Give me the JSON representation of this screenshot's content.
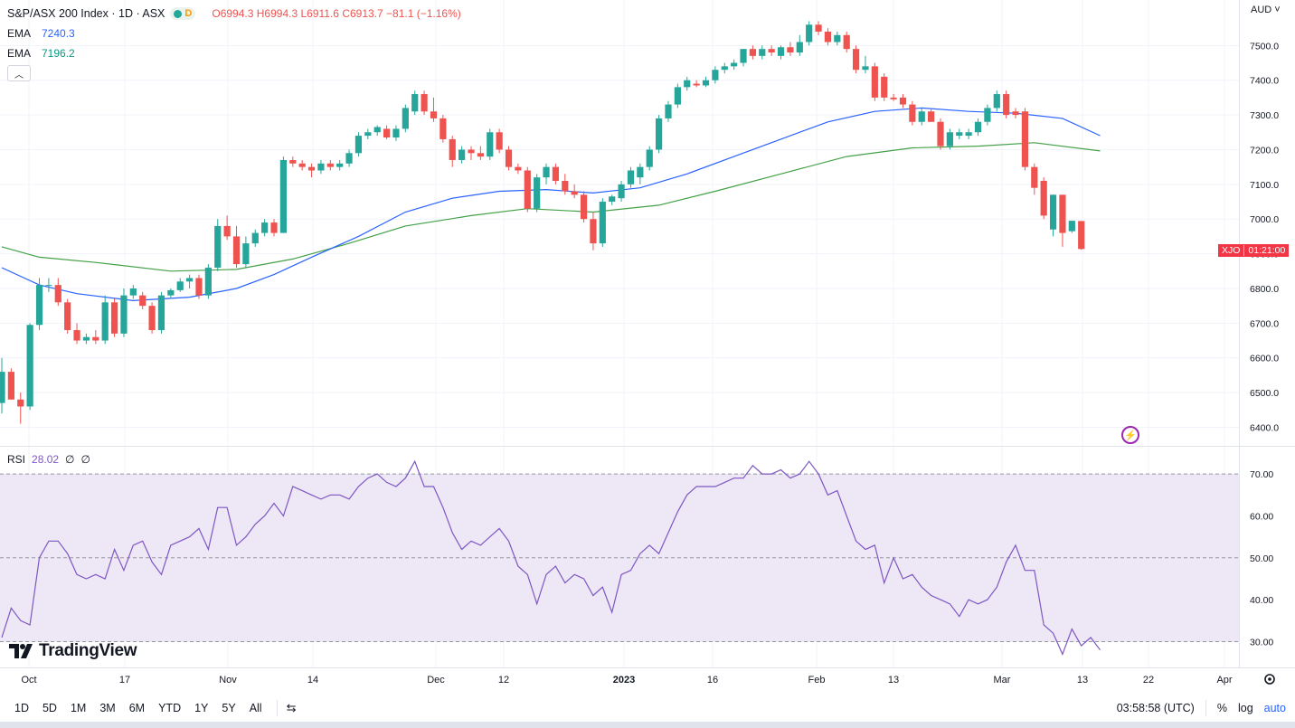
{
  "header": {
    "title": "S&P/ASX 200 Index · 1D · ASX",
    "interval_badge": "D",
    "open": "O6994.3",
    "high": "H6994.3",
    "low": "L6911.6",
    "close": "C6913.7",
    "change": "−81.1 (−1.16%)"
  },
  "indicators": [
    {
      "label": "EMA",
      "value": "7240.3",
      "color": "#2962ff"
    },
    {
      "label": "EMA",
      "value": "7196.2",
      "color": "#089981"
    }
  ],
  "currency": "AUD",
  "price_tag": {
    "symbol": "XJO",
    "countdown": "01:21:00"
  },
  "rsi_legend": {
    "label": "RSI",
    "value": "28.02",
    "extra1": "∅",
    "extra2": "∅"
  },
  "branding": {
    "logo_text": "TradingView"
  },
  "toolbar": {
    "timeframes": [
      "1D",
      "5D",
      "1M",
      "3M",
      "6M",
      "YTD",
      "1Y",
      "5Y",
      "All"
    ],
    "clock": "03:58:58 (UTC)",
    "percent": "%",
    "log": "log",
    "auto": "auto"
  },
  "colors": {
    "up": "#26a69a",
    "down": "#ef5350",
    "ema_fast": "#2962ff",
    "ema_slow": "#089981",
    "rsi": "#7e57c2",
    "rsi_band": "#ede7f6"
  },
  "chart_data": {
    "type": "candlestick",
    "price_axis": {
      "ticks": [
        6400,
        6500,
        6600,
        6700,
        6800,
        6900,
        7000,
        7100,
        7200,
        7300,
        7400,
        7500
      ],
      "tick_labels": [
        "6400.0",
        "6500.0",
        "6600.0",
        "6700.0",
        "6800.0",
        "6900.0",
        "7000.0",
        "7100.0",
        "7200.0",
        "7300.0",
        "7400.0",
        "7500.0"
      ]
    },
    "time_axis": {
      "labels": [
        "Oct",
        "17",
        "Nov",
        "14",
        "Dec",
        "12",
        "2023",
        "16",
        "Feb",
        "13",
        "Mar",
        "13",
        "22",
        "Apr"
      ]
    },
    "candles": [
      {
        "o": 6470,
        "h": 6600,
        "l": 6440,
        "c": 6560
      },
      {
        "o": 6560,
        "h": 6570,
        "l": 6480,
        "c": 6480
      },
      {
        "o": 6480,
        "h": 6500,
        "l": 6410,
        "c": 6460
      },
      {
        "o": 6460,
        "h": 6700,
        "l": 6450,
        "c": 6695
      },
      {
        "o": 6695,
        "h": 6830,
        "l": 6680,
        "c": 6810
      },
      {
        "o": 6810,
        "h": 6830,
        "l": 6790,
        "c": 6810
      },
      {
        "o": 6810,
        "h": 6830,
        "l": 6750,
        "c": 6760
      },
      {
        "o": 6760,
        "h": 6770,
        "l": 6670,
        "c": 6680
      },
      {
        "o": 6680,
        "h": 6700,
        "l": 6640,
        "c": 6650
      },
      {
        "o": 6650,
        "h": 6670,
        "l": 6640,
        "c": 6660
      },
      {
        "o": 6660,
        "h": 6680,
        "l": 6640,
        "c": 6650
      },
      {
        "o": 6650,
        "h": 6780,
        "l": 6640,
        "c": 6760
      },
      {
        "o": 6760,
        "h": 6770,
        "l": 6660,
        "c": 6670
      },
      {
        "o": 6670,
        "h": 6800,
        "l": 6660,
        "c": 6780
      },
      {
        "o": 6780,
        "h": 6810,
        "l": 6770,
        "c": 6800
      },
      {
        "o": 6780,
        "h": 6790,
        "l": 6740,
        "c": 6750
      },
      {
        "o": 6750,
        "h": 6760,
        "l": 6670,
        "c": 6680
      },
      {
        "o": 6680,
        "h": 6790,
        "l": 6670,
        "c": 6780
      },
      {
        "o": 6780,
        "h": 6800,
        "l": 6770,
        "c": 6795
      },
      {
        "o": 6795,
        "h": 6830,
        "l": 6790,
        "c": 6820
      },
      {
        "o": 6820,
        "h": 6840,
        "l": 6800,
        "c": 6830
      },
      {
        "o": 6830,
        "h": 6840,
        "l": 6770,
        "c": 6780
      },
      {
        "o": 6780,
        "h": 6870,
        "l": 6770,
        "c": 6860
      },
      {
        "o": 6860,
        "h": 7000,
        "l": 6850,
        "c": 6980
      },
      {
        "o": 6980,
        "h": 7010,
        "l": 6940,
        "c": 6950
      },
      {
        "o": 6950,
        "h": 6980,
        "l": 6860,
        "c": 6870
      },
      {
        "o": 6870,
        "h": 6950,
        "l": 6860,
        "c": 6930
      },
      {
        "o": 6930,
        "h": 6970,
        "l": 6920,
        "c": 6960
      },
      {
        "o": 6960,
        "h": 7000,
        "l": 6950,
        "c": 6990
      },
      {
        "o": 6990,
        "h": 7000,
        "l": 6950,
        "c": 6960
      },
      {
        "o": 6960,
        "h": 7180,
        "l": 6960,
        "c": 7170
      },
      {
        "o": 7170,
        "h": 7180,
        "l": 7150,
        "c": 7160
      },
      {
        "o": 7160,
        "h": 7170,
        "l": 7140,
        "c": 7150
      },
      {
        "o": 7150,
        "h": 7160,
        "l": 7120,
        "c": 7140
      },
      {
        "o": 7140,
        "h": 7170,
        "l": 7130,
        "c": 7160
      },
      {
        "o": 7160,
        "h": 7170,
        "l": 7140,
        "c": 7150
      },
      {
        "o": 7150,
        "h": 7170,
        "l": 7140,
        "c": 7160
      },
      {
        "o": 7160,
        "h": 7200,
        "l": 7150,
        "c": 7190
      },
      {
        "o": 7190,
        "h": 7250,
        "l": 7180,
        "c": 7240
      },
      {
        "o": 7240,
        "h": 7260,
        "l": 7230,
        "c": 7250
      },
      {
        "o": 7250,
        "h": 7270,
        "l": 7240,
        "c": 7265
      },
      {
        "o": 7260,
        "h": 7270,
        "l": 7230,
        "c": 7235
      },
      {
        "o": 7235,
        "h": 7270,
        "l": 7225,
        "c": 7260
      },
      {
        "o": 7260,
        "h": 7330,
        "l": 7250,
        "c": 7320
      },
      {
        "o": 7310,
        "h": 7370,
        "l": 7300,
        "c": 7360
      },
      {
        "o": 7360,
        "h": 7370,
        "l": 7300,
        "c": 7310
      },
      {
        "o": 7310,
        "h": 7350,
        "l": 7280,
        "c": 7290
      },
      {
        "o": 7290,
        "h": 7300,
        "l": 7220,
        "c": 7230
      },
      {
        "o": 7230,
        "h": 7240,
        "l": 7150,
        "c": 7170
      },
      {
        "o": 7170,
        "h": 7210,
        "l": 7160,
        "c": 7200
      },
      {
        "o": 7200,
        "h": 7210,
        "l": 7170,
        "c": 7190
      },
      {
        "o": 7190,
        "h": 7210,
        "l": 7170,
        "c": 7180
      },
      {
        "o": 7180,
        "h": 7260,
        "l": 7170,
        "c": 7250
      },
      {
        "o": 7250,
        "h": 7260,
        "l": 7190,
        "c": 7200
      },
      {
        "o": 7200,
        "h": 7210,
        "l": 7140,
        "c": 7150
      },
      {
        "o": 7150,
        "h": 7160,
        "l": 7130,
        "c": 7140
      },
      {
        "o": 7140,
        "h": 7150,
        "l": 7020,
        "c": 7030
      },
      {
        "o": 7030,
        "h": 7130,
        "l": 7020,
        "c": 7120
      },
      {
        "o": 7120,
        "h": 7160,
        "l": 7100,
        "c": 7150
      },
      {
        "o": 7150,
        "h": 7160,
        "l": 7100,
        "c": 7110
      },
      {
        "o": 7110,
        "h": 7130,
        "l": 7070,
        "c": 7080
      },
      {
        "o": 7080,
        "h": 7100,
        "l": 7060,
        "c": 7070
      },
      {
        "o": 7070,
        "h": 7080,
        "l": 6990,
        "c": 7000
      },
      {
        "o": 7000,
        "h": 7020,
        "l": 6910,
        "c": 6930
      },
      {
        "o": 6930,
        "h": 7060,
        "l": 6920,
        "c": 7050
      },
      {
        "o": 7050,
        "h": 7070,
        "l": 7040,
        "c": 7065
      },
      {
        "o": 7060,
        "h": 7110,
        "l": 7050,
        "c": 7100
      },
      {
        "o": 7100,
        "h": 7150,
        "l": 7090,
        "c": 7140
      },
      {
        "o": 7120,
        "h": 7160,
        "l": 7100,
        "c": 7150
      },
      {
        "o": 7150,
        "h": 7210,
        "l": 7140,
        "c": 7200
      },
      {
        "o": 7200,
        "h": 7300,
        "l": 7190,
        "c": 7290
      },
      {
        "o": 7290,
        "h": 7340,
        "l": 7280,
        "c": 7330
      },
      {
        "o": 7330,
        "h": 7390,
        "l": 7320,
        "c": 7380
      },
      {
        "o": 7380,
        "h": 7410,
        "l": 7370,
        "c": 7400
      },
      {
        "o": 7390,
        "h": 7400,
        "l": 7380,
        "c": 7385
      },
      {
        "o": 7385,
        "h": 7410,
        "l": 7380,
        "c": 7400
      },
      {
        "o": 7400,
        "h": 7440,
        "l": 7390,
        "c": 7430
      },
      {
        "o": 7430,
        "h": 7450,
        "l": 7420,
        "c": 7440
      },
      {
        "o": 7440,
        "h": 7460,
        "l": 7430,
        "c": 7450
      },
      {
        "o": 7450,
        "h": 7490,
        "l": 7440,
        "c": 7490
      },
      {
        "o": 7490,
        "h": 7500,
        "l": 7460,
        "c": 7470
      },
      {
        "o": 7470,
        "h": 7500,
        "l": 7460,
        "c": 7490
      },
      {
        "o": 7490,
        "h": 7500,
        "l": 7470,
        "c": 7480
      },
      {
        "o": 7470,
        "h": 7500,
        "l": 7460,
        "c": 7495
      },
      {
        "o": 7495,
        "h": 7510,
        "l": 7470,
        "c": 7480
      },
      {
        "o": 7480,
        "h": 7530,
        "l": 7470,
        "c": 7510
      },
      {
        "o": 7510,
        "h": 7570,
        "l": 7500,
        "c": 7560
      },
      {
        "o": 7560,
        "h": 7570,
        "l": 7530,
        "c": 7540
      },
      {
        "o": 7540,
        "h": 7550,
        "l": 7500,
        "c": 7510
      },
      {
        "o": 7510,
        "h": 7540,
        "l": 7500,
        "c": 7530
      },
      {
        "o": 7530,
        "h": 7540,
        "l": 7480,
        "c": 7490
      },
      {
        "o": 7490,
        "h": 7500,
        "l": 7420,
        "c": 7430
      },
      {
        "o": 7430,
        "h": 7470,
        "l": 7420,
        "c": 7440
      },
      {
        "o": 7440,
        "h": 7450,
        "l": 7340,
        "c": 7350
      },
      {
        "o": 7410,
        "h": 7420,
        "l": 7340,
        "c": 7350
      },
      {
        "o": 7350,
        "h": 7360,
        "l": 7340,
        "c": 7345
      },
      {
        "o": 7350,
        "h": 7360,
        "l": 7320,
        "c": 7330
      },
      {
        "o": 7330,
        "h": 7340,
        "l": 7270,
        "c": 7280
      },
      {
        "o": 7280,
        "h": 7320,
        "l": 7270,
        "c": 7310
      },
      {
        "o": 7310,
        "h": 7320,
        "l": 7280,
        "c": 7280
      },
      {
        "o": 7280,
        "h": 7290,
        "l": 7200,
        "c": 7210
      },
      {
        "o": 7210,
        "h": 7260,
        "l": 7200,
        "c": 7250
      },
      {
        "o": 7240,
        "h": 7260,
        "l": 7230,
        "c": 7250
      },
      {
        "o": 7240,
        "h": 7260,
        "l": 7230,
        "c": 7250
      },
      {
        "o": 7250,
        "h": 7290,
        "l": 7240,
        "c": 7280
      },
      {
        "o": 7280,
        "h": 7330,
        "l": 7270,
        "c": 7320
      },
      {
        "o": 7320,
        "h": 7370,
        "l": 7310,
        "c": 7360
      },
      {
        "o": 7360,
        "h": 7370,
        "l": 7290,
        "c": 7300
      },
      {
        "o": 7310,
        "h": 7320,
        "l": 7290,
        "c": 7300
      },
      {
        "o": 7310,
        "h": 7320,
        "l": 7140,
        "c": 7150
      },
      {
        "o": 7150,
        "h": 7160,
        "l": 7070,
        "c": 7090
      },
      {
        "o": 7110,
        "h": 7120,
        "l": 7000,
        "c": 7010
      },
      {
        "o": 6970,
        "h": 7070,
        "l": 6950,
        "c": 7070
      },
      {
        "o": 7070,
        "h": 7070,
        "l": 6920,
        "c": 6960
      },
      {
        "o": 6965,
        "h": 6995,
        "l": 6960,
        "c": 6995
      },
      {
        "o": 6994.3,
        "h": 6994.3,
        "l": 6911.6,
        "c": 6913.7
      }
    ],
    "ema_fast": [
      {
        "i": 0,
        "v": 6860
      },
      {
        "i": 4,
        "v": 6810
      },
      {
        "i": 8,
        "v": 6785
      },
      {
        "i": 14,
        "v": 6765
      },
      {
        "i": 20,
        "v": 6775
      },
      {
        "i": 25,
        "v": 6800
      },
      {
        "i": 29,
        "v": 6840
      },
      {
        "i": 33,
        "v": 6890
      },
      {
        "i": 38,
        "v": 6950
      },
      {
        "i": 43,
        "v": 7020
      },
      {
        "i": 48,
        "v": 7060
      },
      {
        "i": 53,
        "v": 7080
      },
      {
        "i": 58,
        "v": 7085
      },
      {
        "i": 63,
        "v": 7075
      },
      {
        "i": 68,
        "v": 7090
      },
      {
        "i": 73,
        "v": 7130
      },
      {
        "i": 78,
        "v": 7180
      },
      {
        "i": 83,
        "v": 7230
      },
      {
        "i": 88,
        "v": 7280
      },
      {
        "i": 93,
        "v": 7310
      },
      {
        "i": 98,
        "v": 7320
      },
      {
        "i": 103,
        "v": 7310
      },
      {
        "i": 108,
        "v": 7305
      },
      {
        "i": 113,
        "v": 7290
      },
      {
        "i": 117,
        "v": 7240.3
      }
    ],
    "ema_slow": [
      {
        "i": 0,
        "v": 6920
      },
      {
        "i": 4,
        "v": 6890
      },
      {
        "i": 10,
        "v": 6875
      },
      {
        "i": 18,
        "v": 6850
      },
      {
        "i": 25,
        "v": 6855
      },
      {
        "i": 31,
        "v": 6885
      },
      {
        "i": 37,
        "v": 6930
      },
      {
        "i": 43,
        "v": 6980
      },
      {
        "i": 50,
        "v": 7010
      },
      {
        "i": 56,
        "v": 7030
      },
      {
        "i": 63,
        "v": 7020
      },
      {
        "i": 70,
        "v": 7040
      },
      {
        "i": 76,
        "v": 7080
      },
      {
        "i": 83,
        "v": 7130
      },
      {
        "i": 90,
        "v": 7180
      },
      {
        "i": 97,
        "v": 7205
      },
      {
        "i": 104,
        "v": 7210
      },
      {
        "i": 110,
        "v": 7220
      },
      {
        "i": 117,
        "v": 7196.2
      }
    ],
    "rsi": {
      "ticks": [
        30,
        40,
        50,
        60,
        70
      ],
      "tick_labels": [
        "30.00",
        "40.00",
        "50.00",
        "60.00",
        "70.00"
      ],
      "band": [
        30,
        70
      ],
      "values": [
        31,
        38,
        35,
        34,
        50,
        54,
        54,
        51,
        46,
        45,
        46,
        45,
        52,
        47,
        53,
        54,
        49,
        46,
        53,
        54,
        55,
        57,
        52,
        62,
        62,
        53,
        55,
        58,
        60,
        63,
        60,
        67,
        66,
        65,
        64,
        65,
        65,
        64,
        67,
        69,
        70,
        68,
        67,
        69,
        73,
        67,
        67,
        62,
        56,
        52,
        54,
        53,
        55,
        57,
        54,
        48,
        46,
        39,
        46,
        48,
        44,
        46,
        45,
        41,
        43,
        37,
        46,
        47,
        51,
        53,
        51,
        56,
        61,
        65,
        67,
        67,
        67,
        68,
        69,
        69,
        72,
        70,
        70,
        71,
        69,
        70,
        73,
        70,
        65,
        66,
        60,
        54,
        52,
        53,
        44,
        50,
        45,
        46,
        43,
        41,
        40,
        39,
        36,
        40,
        39,
        40,
        43,
        49,
        53,
        47,
        47,
        34,
        32,
        27,
        33,
        29,
        31,
        28.02
      ]
    }
  }
}
